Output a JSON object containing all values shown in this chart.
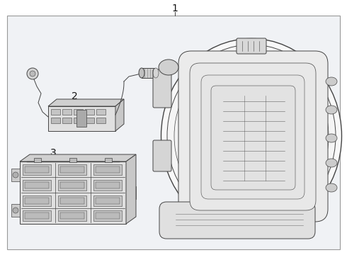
{
  "bg_color": "#ffffff",
  "diagram_bg": "#f0f2f5",
  "line_color": "#444444",
  "label_color": "#111111",
  "label_1": "1",
  "label_2": "2",
  "label_3": "3",
  "fig_width": 4.9,
  "fig_height": 3.6,
  "dpi": 100
}
